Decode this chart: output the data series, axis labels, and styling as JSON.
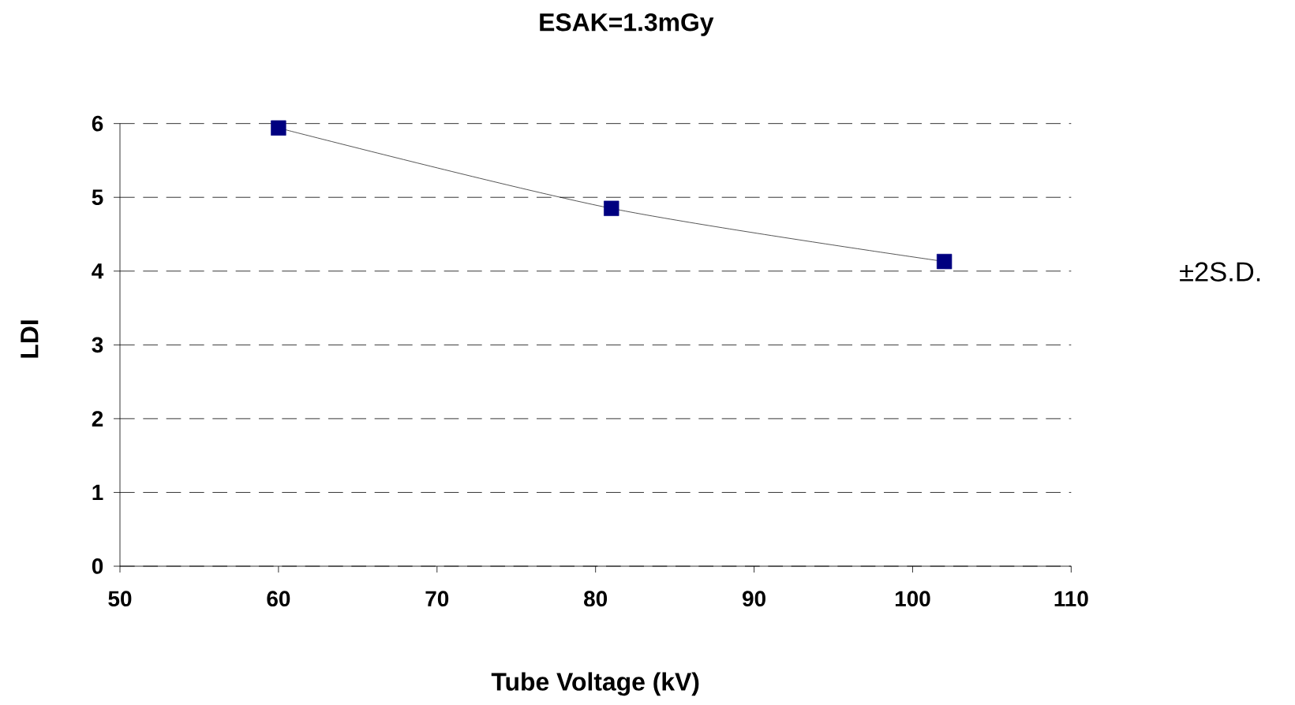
{
  "chart_data": {
    "type": "line",
    "title": "ESAK=1.3mGy",
    "xlabel": "Tube Voltage (kV)",
    "ylabel": "LDI",
    "annotations": [
      "±2S.D."
    ],
    "x": [
      60,
      81,
      102
    ],
    "series": [
      {
        "color": "#000080",
        "values": [
          5.94,
          4.85,
          4.13
        ]
      }
    ],
    "xlim": [
      50,
      110
    ],
    "ylim": [
      0,
      6
    ],
    "xticks": [
      50,
      60,
      70,
      80,
      90,
      100,
      110
    ],
    "yticks": [
      0,
      1,
      2,
      3,
      4,
      5,
      6
    ],
    "grid": "y",
    "marker": "square",
    "line_style": "solid"
  }
}
